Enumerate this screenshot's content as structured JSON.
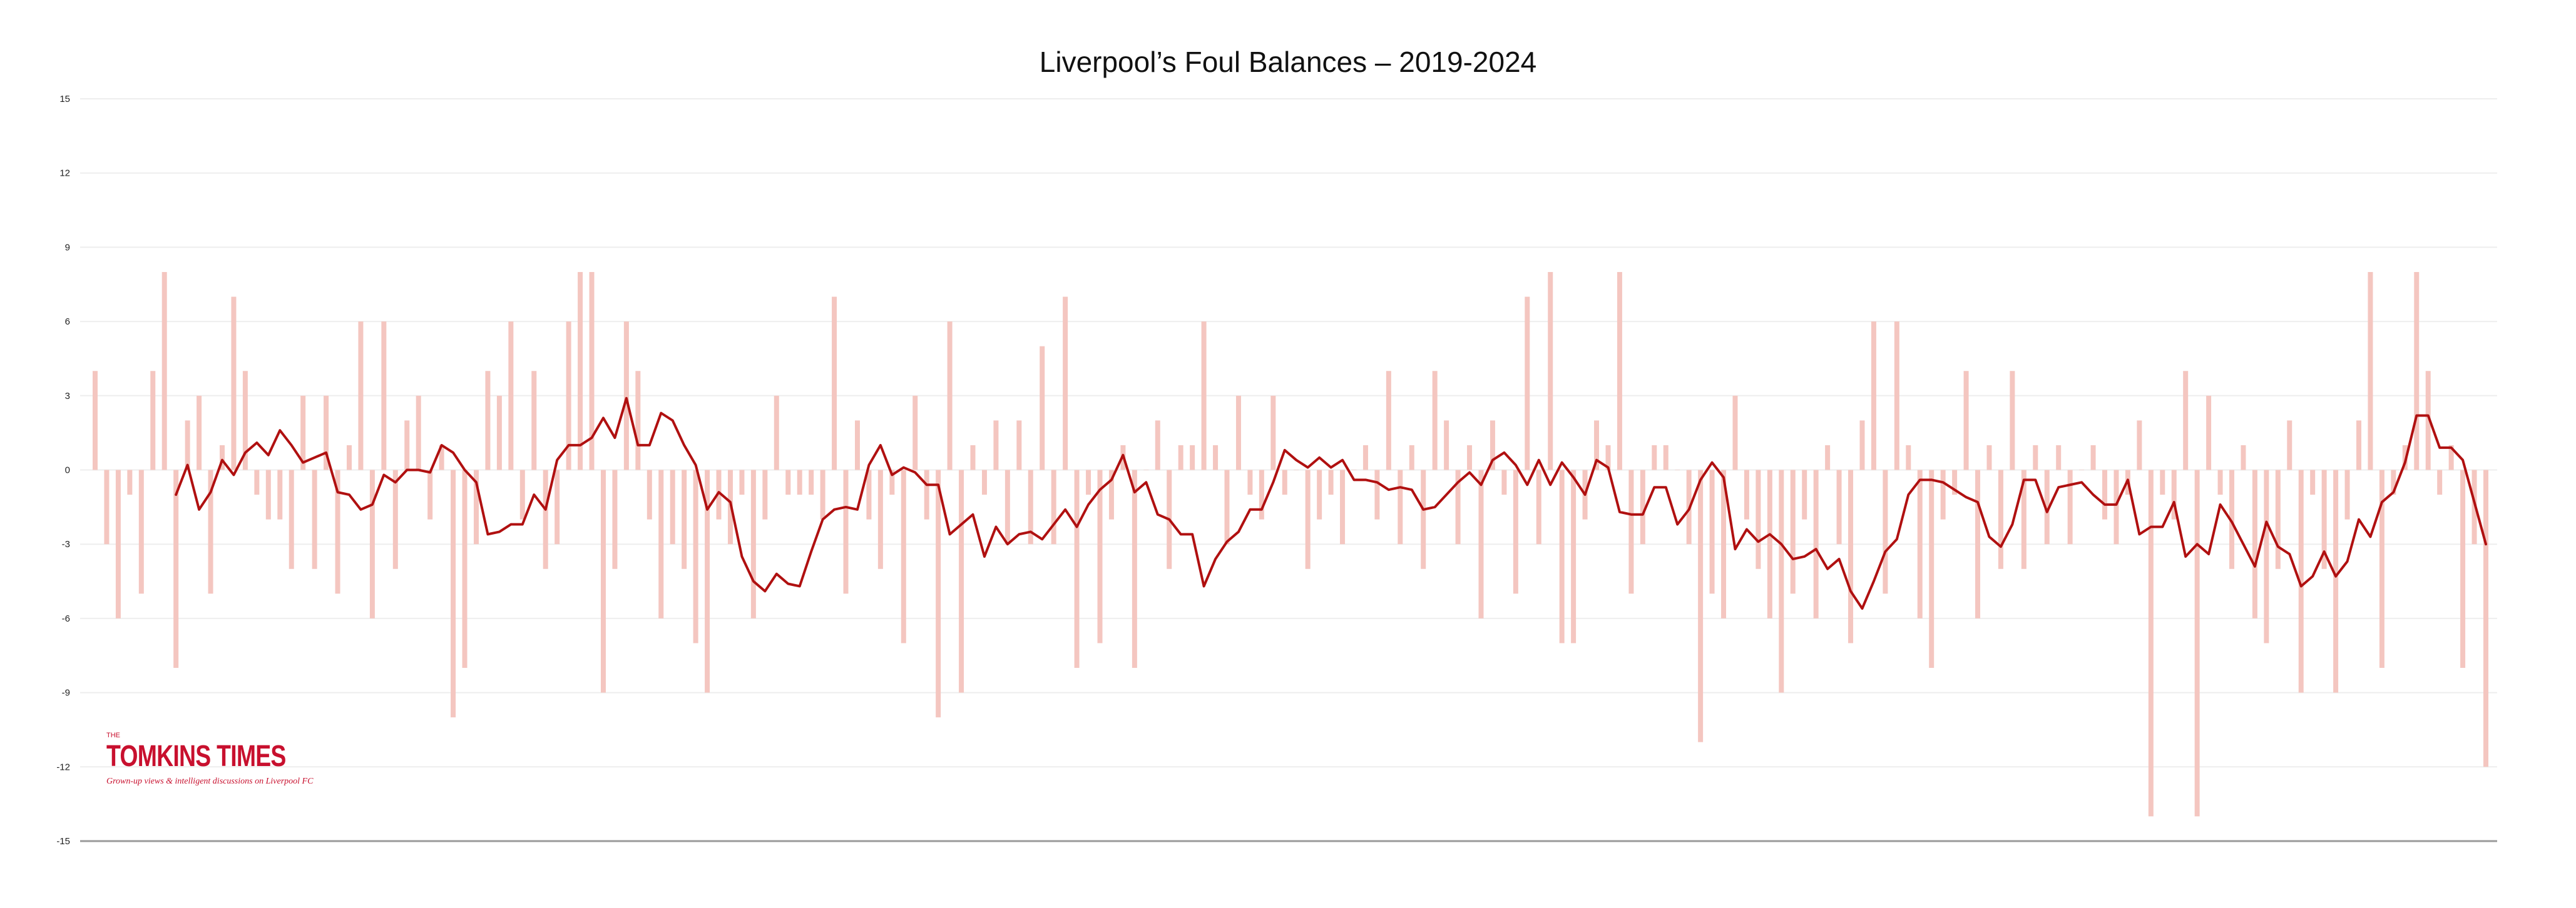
{
  "chart_data": {
    "type": "bar",
    "title": "Liverpool’s Foul Balances – 2019-2024",
    "xlabel": "",
    "ylabel": "",
    "ylim": [
      -15,
      15
    ],
    "yticks": [
      15,
      12,
      9,
      6,
      3,
      0,
      -3,
      -6,
      -9,
      -12,
      -15
    ],
    "grid": true,
    "colors": {
      "bars": "#f4c6c0",
      "line": "#b01010",
      "grid": "#eeeeee",
      "axis": "#9a9a9a"
    },
    "series": [
      {
        "type": "bar",
        "values": [
          4,
          -3,
          -6,
          -1,
          -5,
          4,
          8,
          -8,
          2,
          3,
          -5,
          1,
          7,
          4,
          -1,
          -2,
          -2,
          -4,
          3,
          -4,
          3,
          -5,
          1,
          6,
          -6,
          6,
          -4,
          2,
          3,
          -2,
          1,
          -10,
          -8,
          -3,
          4,
          3,
          6,
          -2,
          4,
          -4,
          -3,
          6,
          8,
          8,
          -9,
          -4,
          6,
          4,
          -2,
          -6,
          -3,
          -4,
          -7,
          -9,
          -2,
          -3,
          -1,
          -6,
          -2,
          3,
          -1,
          -1,
          -1,
          -2,
          7,
          -5,
          2,
          -2,
          -4,
          -1,
          -7,
          3,
          -2,
          -10,
          6,
          -9,
          1,
          -1,
          2,
          -3,
          2,
          -3,
          5,
          -3,
          7,
          -8,
          -1,
          -7,
          -2,
          1,
          -8,
          0,
          2,
          -4,
          1,
          1,
          6,
          1,
          -3,
          3,
          -1,
          -2,
          3,
          -1,
          0,
          -4,
          -2,
          -1,
          -3,
          0,
          1,
          -2,
          4,
          -3,
          1,
          -4,
          4,
          2,
          -3,
          1,
          -6,
          2,
          -1,
          -5,
          7,
          -3,
          8,
          -7,
          -7,
          -2,
          2,
          1,
          8,
          -5,
          -3,
          1,
          1,
          0,
          -3,
          -11,
          -5,
          -6,
          3,
          -2,
          -4,
          -6,
          -9,
          -5,
          -2,
          -6,
          1,
          -3,
          -7,
          2,
          6,
          -5,
          6,
          1,
          -6,
          -8,
          -2,
          -1,
          4,
          -6,
          1,
          -4,
          4,
          -4,
          1,
          -3,
          1,
          -3,
          0,
          1,
          -2,
          -3,
          -1,
          2,
          -14,
          -1,
          -2,
          4,
          -14,
          3,
          -1,
          -4,
          1,
          -6,
          -7,
          -4,
          2,
          -9,
          -1,
          -4,
          -9,
          -2,
          2,
          8,
          -8,
          -1,
          1,
          8,
          4,
          -1,
          1,
          -8,
          -3,
          -12
        ]
      },
      {
        "type": "line",
        "values": [
          -1,
          0.2,
          -1.6,
          -0.9,
          0.4,
          -0.2,
          0.7,
          1.1,
          0.6,
          1.6,
          1,
          0.3,
          0.5,
          0.7,
          -0.9,
          -1,
          -1.6,
          -1.4,
          -0.2,
          -0.5,
          0,
          0,
          -0.1,
          1,
          0.7,
          0,
          -0.5,
          -2.6,
          -2.5,
          -2.2,
          -2.2,
          -1,
          -1.6,
          0.4,
          1,
          1,
          1.3,
          2.1,
          1.3,
          2.9,
          1,
          1,
          2.3,
          2,
          1,
          0.2,
          -1.6,
          -0.9,
          -1.3,
          -3.5,
          -4.5,
          -4.9,
          -4.2,
          -4.6,
          -4.7,
          -3.3,
          -2,
          -1.6,
          -1.5,
          -1.6,
          0.2,
          1,
          -0.2,
          0.1,
          -0.1,
          -0.6,
          -0.6,
          -2.6,
          -2.2,
          -1.8,
          -3.5,
          -2.3,
          -3,
          -2.6,
          -2.5,
          -2.8,
          -2.2,
          -1.6,
          -2.3,
          -1.4,
          -0.8,
          -0.4,
          0.6,
          -0.9,
          -0.5,
          -1.8,
          -2,
          -2.6,
          -2.6,
          -4.7,
          -3.6,
          -2.9,
          -2.5,
          -1.6,
          -1.6,
          -0.5,
          0.8,
          0.4,
          0.1,
          0.5,
          0.1,
          0.4,
          -0.4,
          -0.4,
          -0.5,
          -0.8,
          -0.7,
          -0.8,
          -1.6,
          -1.5,
          -1,
          -0.5,
          -0.1,
          -0.6,
          0.4,
          0.7,
          0.2,
          -0.6,
          0.4,
          -0.6,
          0.3,
          -0.3,
          -1,
          0.4,
          0.1,
          -1.7,
          -1.8,
          -1.8,
          -0.7,
          -0.7,
          -2.2,
          -1.6,
          -0.4,
          0.3,
          -0.3,
          -3.2,
          -2.4,
          -2.9,
          -2.6,
          -3,
          -3.6,
          -3.5,
          -3.2,
          -4,
          -3.6,
          -4.9,
          -5.6,
          -4.5,
          -3.3,
          -2.8,
          -1,
          -0.4,
          -0.4,
          -0.5,
          -0.8,
          -1.1,
          -1.3,
          -2.7,
          -3.1,
          -2.2,
          -0.4,
          -0.4,
          -1.7,
          -0.7,
          -0.6,
          -0.5,
          -1,
          -1.4,
          -1.4,
          -0.4,
          -2.6,
          -2.3,
          -2.3,
          -1.3,
          -3.5,
          -3,
          -3.4,
          -1.4,
          -2.1,
          -3,
          -3.9,
          -2.1,
          -3.1,
          -3.4,
          -4.7,
          -4.3,
          -3.3,
          -4.3,
          -3.7,
          -2,
          -2.7,
          -1.3,
          -0.9,
          0.3,
          2.2,
          2.2,
          0.9,
          0.9,
          0.4,
          -1.3,
          -3
        ]
      }
    ]
  },
  "logo": {
    "wordmark": "TOMKINS TIMES",
    "badge": "THE",
    "tagline": "Grown-up views & intelligent discussions on Liverpool FC"
  }
}
